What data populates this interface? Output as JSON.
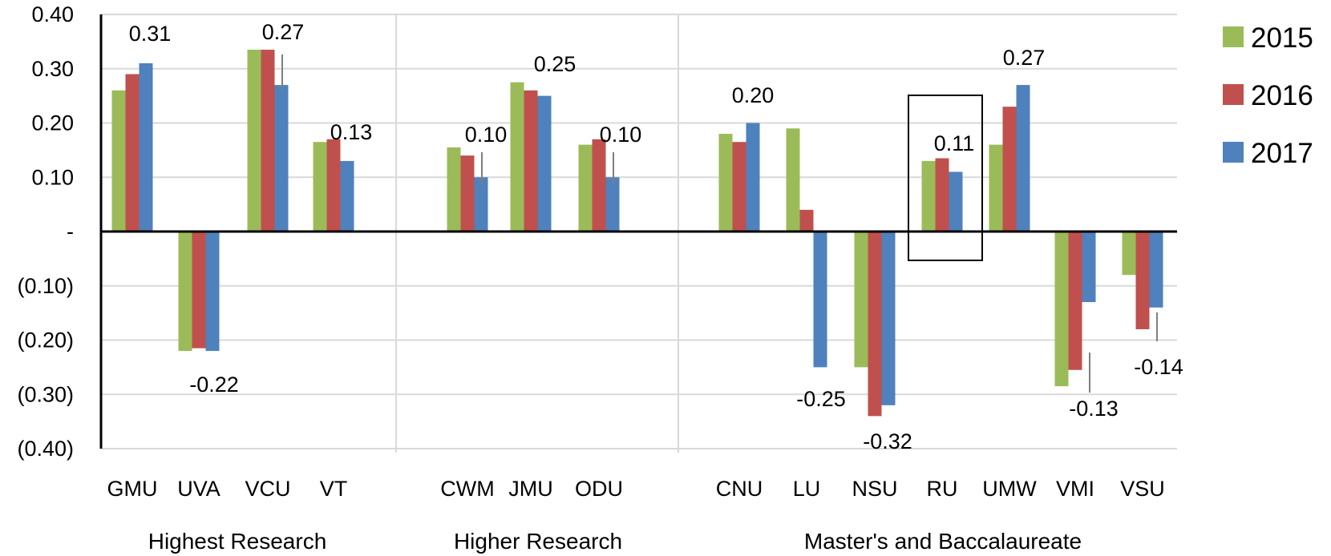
{
  "chart_data": {
    "type": "bar",
    "title": "",
    "xlabel": "",
    "ylabel": "",
    "ylim": [
      -0.4,
      0.4
    ],
    "yticks": [
      {
        "value": 0.4,
        "label": "0.40"
      },
      {
        "value": 0.3,
        "label": "0.30"
      },
      {
        "value": 0.2,
        "label": "0.20"
      },
      {
        "value": 0.1,
        "label": "0.10"
      },
      {
        "value": 0.0,
        "label": "-"
      },
      {
        "value": -0.1,
        "label": "(0.10)"
      },
      {
        "value": -0.2,
        "label": "(0.20)"
      },
      {
        "value": -0.3,
        "label": "(0.30)"
      },
      {
        "value": -0.4,
        "label": "(0.40)"
      }
    ],
    "grid": true,
    "legend_position": "top-right",
    "groups": [
      {
        "label": "Highest Research",
        "categories": [
          "GMU",
          "UVA",
          "VCU",
          "VT"
        ]
      },
      {
        "label": "Higher Research",
        "categories": [
          "CWM",
          "JMU",
          "ODU"
        ]
      },
      {
        "label": "Master's and Baccalaureate",
        "categories": [
          "CNU",
          "LU",
          "NSU",
          "RU",
          "UMW",
          "VMI",
          "VSU"
        ]
      }
    ],
    "categories": [
      "GMU",
      "UVA",
      "VCU",
      "VT",
      "CWM",
      "JMU",
      "ODU",
      "CNU",
      "LU",
      "NSU",
      "RU",
      "UMW",
      "VMI",
      "VSU"
    ],
    "series": [
      {
        "name": "2015",
        "color": "#9BBB59",
        "values": [
          0.26,
          -0.22,
          0.335,
          0.165,
          0.155,
          0.275,
          0.16,
          0.18,
          0.19,
          -0.25,
          0.13,
          0.16,
          -0.285,
          -0.08
        ]
      },
      {
        "name": "2016",
        "color": "#C0504D",
        "values": [
          0.29,
          -0.215,
          0.335,
          0.17,
          0.14,
          0.26,
          0.17,
          0.165,
          0.04,
          -0.34,
          0.135,
          0.23,
          -0.255,
          -0.18
        ]
      },
      {
        "name": "2017",
        "color": "#4F81BD",
        "values": [
          0.31,
          -0.22,
          0.27,
          0.13,
          0.1,
          0.25,
          0.1,
          0.2,
          -0.25,
          -0.32,
          0.11,
          0.27,
          -0.13,
          -0.14
        ]
      }
    ],
    "data_labels": [
      {
        "category": "GMU",
        "text": "0.31"
      },
      {
        "category": "UVA",
        "text": "-0.22"
      },
      {
        "category": "VCU",
        "text": "0.27"
      },
      {
        "category": "VT",
        "text": "0.13"
      },
      {
        "category": "CWM",
        "text": "0.10"
      },
      {
        "category": "JMU",
        "text": "0.25"
      },
      {
        "category": "ODU",
        "text": "0.10"
      },
      {
        "category": "CNU",
        "text": "0.20"
      },
      {
        "category": "LU",
        "text": "-0.25"
      },
      {
        "category": "NSU",
        "text": "-0.32"
      },
      {
        "category": "RU",
        "text": "0.11"
      },
      {
        "category": "UMW",
        "text": "0.27"
      },
      {
        "category": "VMI",
        "text": "-0.13"
      },
      {
        "category": "VSU",
        "text": "-0.14"
      }
    ],
    "highlighted_category": "RU"
  }
}
